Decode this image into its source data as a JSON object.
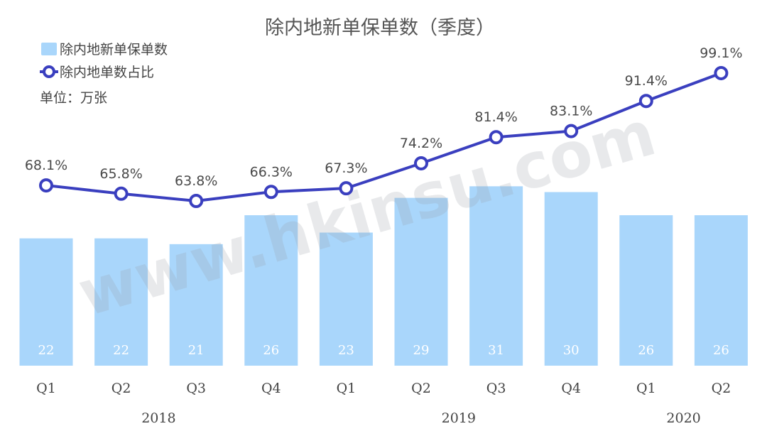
{
  "chart_data": {
    "type": "bar",
    "title": "除内地新单保单数（季度）",
    "unit": "单位：万张",
    "categories": [
      "Q1",
      "Q2",
      "Q3",
      "Q4",
      "Q1",
      "Q2",
      "Q3",
      "Q4",
      "Q1",
      "Q2"
    ],
    "years": [
      {
        "label": "2018",
        "from": 0,
        "to": 3
      },
      {
        "label": "2019",
        "from": 4,
        "to": 7
      },
      {
        "label": "2020",
        "from": 8,
        "to": 9
      }
    ],
    "series": [
      {
        "name": "除内地新单保单数",
        "type": "bar",
        "color": "#a9d6fb",
        "values": [
          22,
          22,
          21,
          26,
          23,
          29,
          31,
          30,
          26,
          26
        ]
      },
      {
        "name": "除内地单数占比",
        "type": "line",
        "color": "#3a3fbf",
        "values": [
          68.1,
          65.8,
          63.8,
          66.3,
          67.3,
          74.2,
          81.4,
          83.1,
          91.4,
          99.1
        ],
        "labels": [
          "68.1%",
          "65.8%",
          "63.8%",
          "66.3%",
          "67.3%",
          "74.2%",
          "81.4%",
          "83.1%",
          "91.4%",
          "99.1%"
        ]
      }
    ],
    "ylim_bar": [
      0,
      36
    ],
    "ylim_line": [
      0,
      100
    ],
    "legend_position": "top-left",
    "grid": false
  },
  "watermark": "www.hkinsu.com"
}
